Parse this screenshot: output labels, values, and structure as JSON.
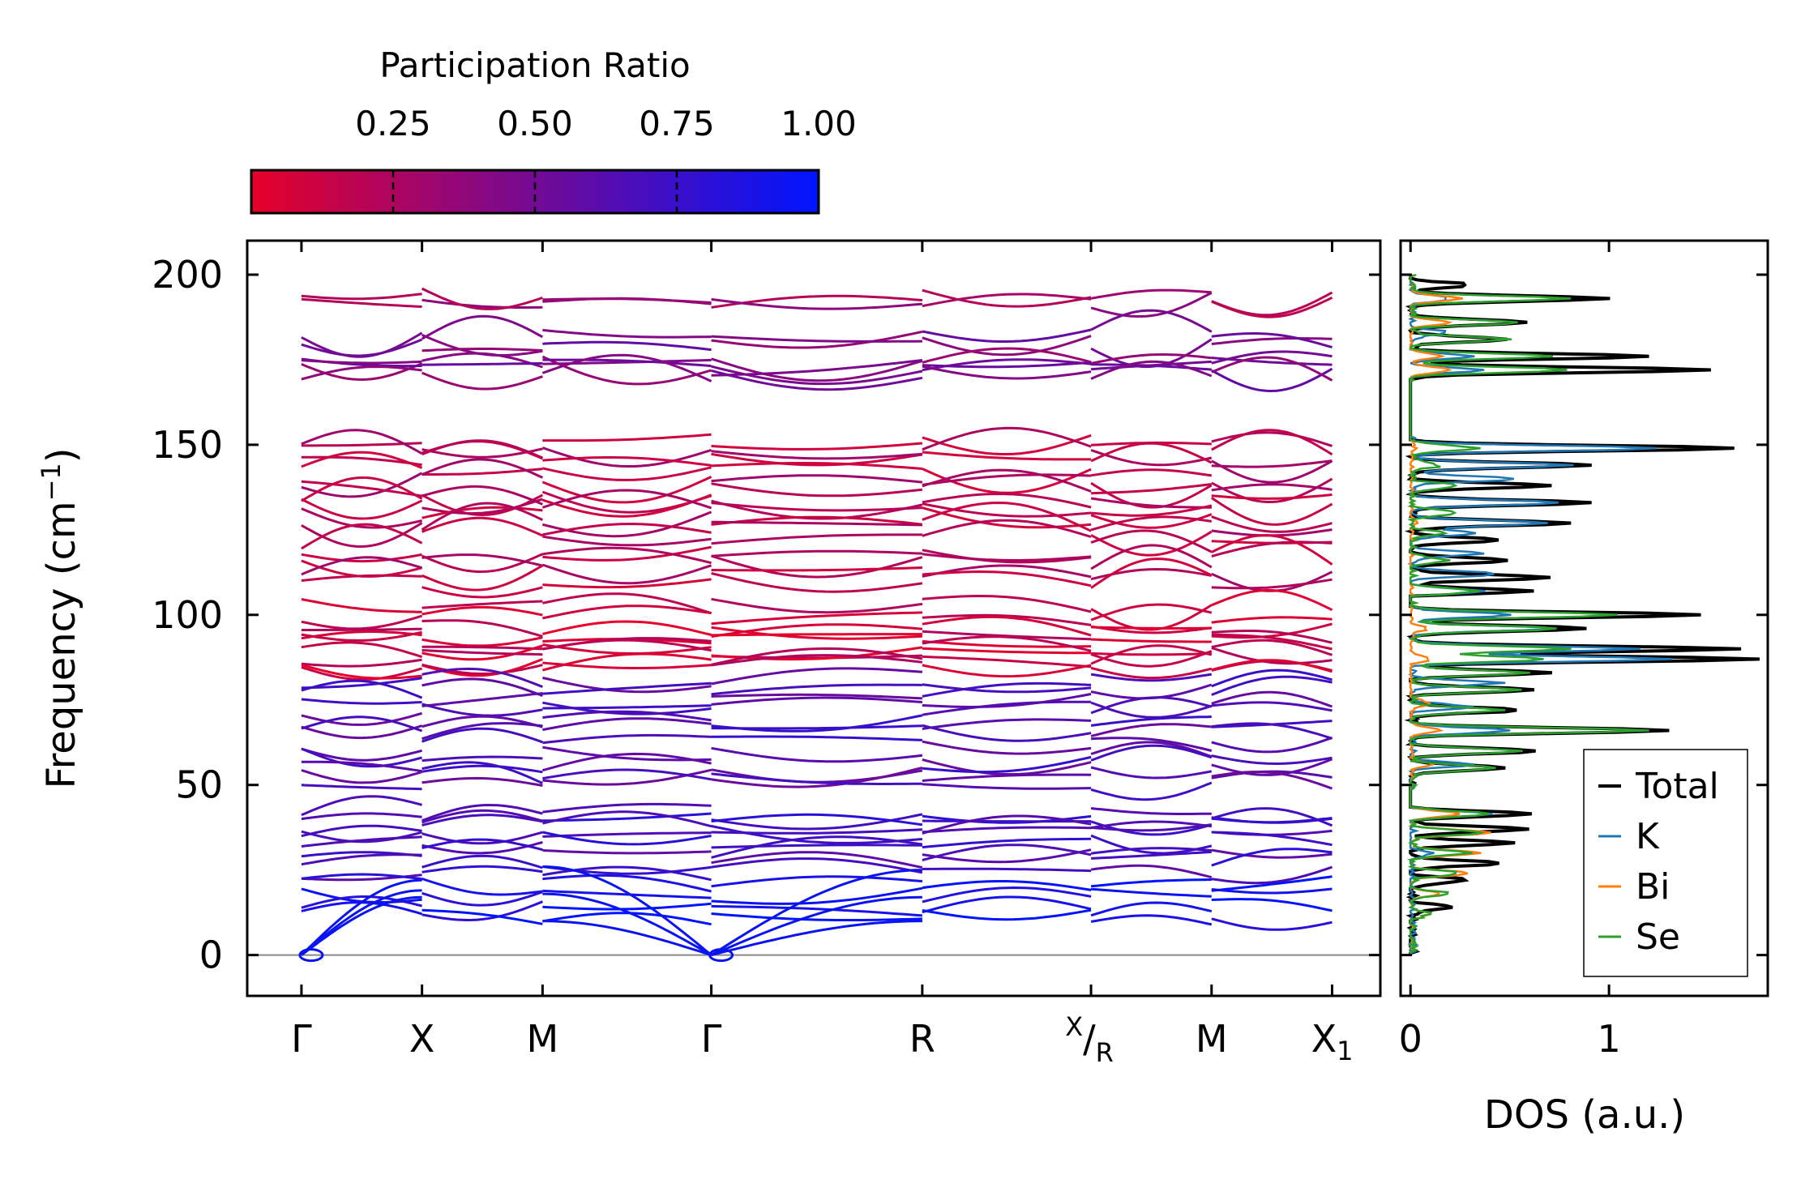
{
  "chart_data": [
    {
      "type": "line",
      "subtype": "phonon-band-structure",
      "ylabel": "Frequency (cm",
      "ylabel_sup": "−1",
      "ylabel_close": ")",
      "ylim": [
        -12,
        210
      ],
      "yticks": [
        0,
        50,
        100,
        150,
        200
      ],
      "kpath": [
        {
          "label": "Γ",
          "pos": 0.0
        },
        {
          "label": "X",
          "pos": 1.0
        },
        {
          "label": "M",
          "pos": 2.0
        },
        {
          "label": "Γ",
          "pos": 3.4
        },
        {
          "label": "R",
          "pos": 5.15
        },
        {
          "label": "X/R",
          "top": "X",
          "slash": "/",
          "bottom": "R",
          "pos": 6.55
        },
        {
          "label": "M",
          "pos": 7.55
        },
        {
          "label": "X1",
          "main": "X",
          "sub": "1",
          "pos": 8.55
        }
      ],
      "xlim": [
        -0.45,
        8.95
      ],
      "colorbar": {
        "label": "Participation Ratio",
        "range": [
          0.0,
          1.0
        ],
        "ticks": [
          "0.25",
          "0.50",
          "0.75",
          "1.00"
        ],
        "tick_values": [
          0.25,
          0.5,
          0.75,
          1.0
        ],
        "color_low": "#e6002a",
        "color_high": "#0014ff"
      },
      "acoustic_branch_color": "#0a14f0",
      "band_groups": [
        {
          "levels": [
            192.5,
            193.5
          ],
          "pr": 0.28
        },
        {
          "levels": [
            182,
            180,
            176,
            174,
            172.5,
            171
          ],
          "pr": 0.45
        },
        {
          "levels": [
            151,
            148,
            146,
            143,
            140,
            137,
            134,
            132,
            129,
            126,
            122,
            119,
            116,
            113,
            110
          ],
          "pr": 0.2
        },
        {
          "levels": [
            102.5,
            99,
            96,
            94,
            92,
            90,
            88,
            86,
            84
          ],
          "pr": 0.12
        },
        {
          "levels": [
            81,
            78,
            75,
            72,
            69,
            66,
            62,
            59,
            56,
            53,
            51
          ],
          "pr": 0.65
        },
        {
          "levels": [
            42,
            40,
            38,
            36,
            34,
            31,
            28,
            24
          ],
          "pr": 0.7
        },
        {
          "levels": [
            21,
            18,
            14,
            11
          ],
          "pr": 0.92
        }
      ]
    },
    {
      "type": "line",
      "subtype": "density-of-states",
      "xlabel": "DOS (a.u.)",
      "xticks": [
        0,
        1
      ],
      "xlim": [
        -0.05,
        1.8
      ],
      "ylim": [
        -12,
        210
      ],
      "series": [
        {
          "name": "Total",
          "color": "#000000",
          "peaks": [
            [
              14,
              0.2
            ],
            [
              22,
              0.3
            ],
            [
              27,
              0.45
            ],
            [
              33,
              0.5
            ],
            [
              37,
              0.6
            ],
            [
              41.5,
              0.6
            ],
            [
              55,
              0.5
            ],
            [
              60,
              0.65
            ],
            [
              66,
              1.3
            ],
            [
              72,
              0.55
            ],
            [
              78,
              0.6
            ],
            [
              83,
              0.7
            ],
            [
              87,
              1.75
            ],
            [
              90,
              1.65
            ],
            [
              96,
              0.9
            ],
            [
              100,
              1.45
            ],
            [
              107,
              0.6
            ],
            [
              111,
              0.7
            ],
            [
              116,
              0.5
            ],
            [
              122,
              0.45
            ],
            [
              127,
              0.8
            ],
            [
              133,
              0.9
            ],
            [
              138,
              0.7
            ],
            [
              144,
              0.9
            ],
            [
              149,
              1.65
            ],
            [
              172,
              1.5
            ],
            [
              176,
              1.2
            ],
            [
              181,
              0.5
            ],
            [
              186,
              0.6
            ],
            [
              193,
              1.0
            ],
            [
              197,
              0.3
            ]
          ]
        },
        {
          "name": "K",
          "color": "#1f77b4",
          "peaks": [
            [
              30,
              0.1
            ],
            [
              41.5,
              0.4
            ],
            [
              56,
              0.3
            ],
            [
              66,
              0.5
            ],
            [
              73,
              0.3
            ],
            [
              80,
              0.45
            ],
            [
              87,
              1.3
            ],
            [
              90,
              1.15
            ],
            [
              96,
              0.7
            ],
            [
              100,
              0.5
            ],
            [
              107,
              0.35
            ],
            [
              112,
              0.45
            ],
            [
              118,
              0.35
            ],
            [
              124,
              0.3
            ],
            [
              127,
              0.7
            ],
            [
              133,
              0.75
            ],
            [
              140,
              0.55
            ],
            [
              144,
              0.8
            ],
            [
              149,
              1.25
            ],
            [
              172,
              0.35
            ],
            [
              176,
              0.3
            ],
            [
              183,
              0.2
            ],
            [
              193,
              0.2
            ]
          ]
        },
        {
          "name": "Bi",
          "color": "#ff7f0e",
          "peaks": [
            [
              12,
              0.1
            ],
            [
              18,
              0.15
            ],
            [
              24,
              0.3
            ],
            [
              30,
              0.35
            ],
            [
              36,
              0.4
            ],
            [
              41.5,
              0.25
            ],
            [
              56,
              0.1
            ],
            [
              66,
              0.15
            ],
            [
              74,
              0.1
            ],
            [
              87,
              0.1
            ],
            [
              96,
              0.08
            ],
            [
              127,
              0.03
            ],
            [
              149,
              0.03
            ],
            [
              172,
              0.2
            ],
            [
              176,
              0.15
            ],
            [
              186,
              0.2
            ],
            [
              193,
              0.25
            ]
          ]
        },
        {
          "name": "Se",
          "color": "#2ca02c",
          "peaks": [
            [
              12,
              0.1
            ],
            [
              18,
              0.2
            ],
            [
              24,
              0.25
            ],
            [
              30,
              0.3
            ],
            [
              36,
              0.35
            ],
            [
              41.5,
              0.4
            ],
            [
              55,
              0.45
            ],
            [
              60,
              0.55
            ],
            [
              66,
              1.2
            ],
            [
              72,
              0.45
            ],
            [
              78,
              0.55
            ],
            [
              83,
              0.6
            ],
            [
              87,
              0.7
            ],
            [
              90,
              0.8
            ],
            [
              96,
              0.75
            ],
            [
              100,
              1.05
            ],
            [
              107,
              0.35
            ],
            [
              116,
              0.2
            ],
            [
              124,
              0.15
            ],
            [
              130,
              0.25
            ],
            [
              138,
              0.25
            ],
            [
              144,
              0.15
            ],
            [
              149,
              0.35
            ],
            [
              172,
              0.8
            ],
            [
              176,
              0.7
            ],
            [
              181,
              0.5
            ],
            [
              186,
              0.55
            ],
            [
              193,
              0.78
            ]
          ]
        }
      ]
    }
  ]
}
